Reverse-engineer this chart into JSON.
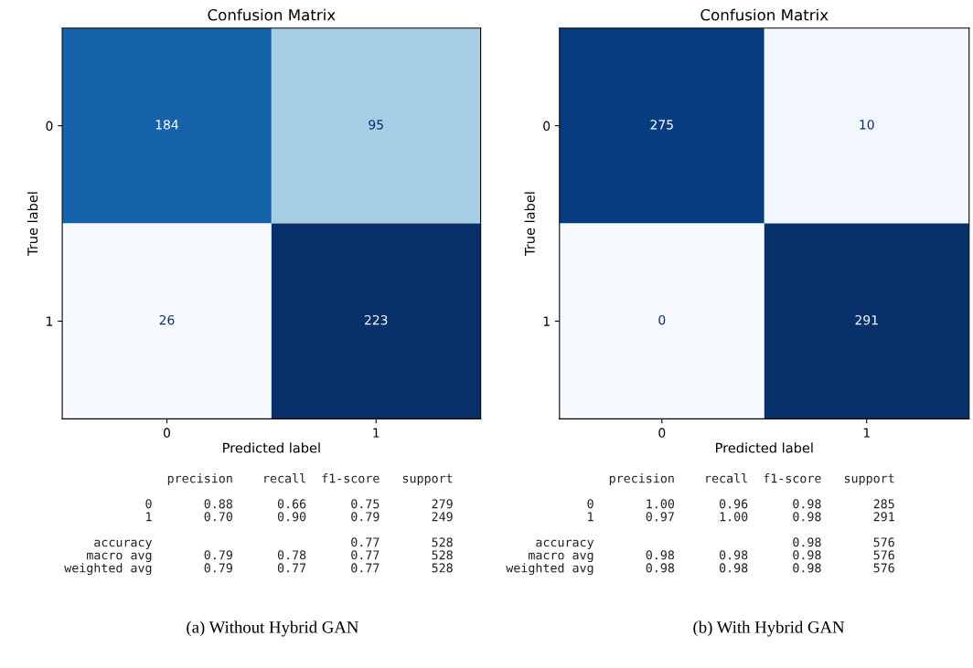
{
  "chart_data": [
    {
      "type": "heatmap",
      "title": "Confusion Matrix",
      "xlabel": "Predicted label",
      "ylabel": "True label",
      "categories": [
        "0",
        "1"
      ],
      "y_categories": [
        "0",
        "1"
      ],
      "cells": [
        [
          184,
          95
        ],
        [
          26,
          223
        ]
      ],
      "data_labels": true,
      "grid": false,
      "annotations": [
        "              precision    recall  f1-score   support\n\n           0       0.88      0.66      0.75       279\n           1       0.70      0.90      0.79       249\n\n    accuracy                           0.77       528\n   macro avg       0.79      0.78      0.77       528\nweighted avg       0.79      0.77      0.77       528",
        "(a) Without Hybrid GAN"
      ]
    },
    {
      "type": "heatmap",
      "title": "Confusion Matrix",
      "xlabel": "Predicted label",
      "ylabel": "True label",
      "categories": [
        "0",
        "1"
      ],
      "y_categories": [
        "0",
        "1"
      ],
      "cells": [
        [
          275,
          10
        ],
        [
          0,
          291
        ]
      ],
      "data_labels": true,
      "grid": false,
      "annotations": [
        "              precision    recall  f1-score   support\n\n           0       1.00      0.96      0.98       285\n           1       0.97      1.00      0.98       291\n\n    accuracy                           0.98       576\n   macro avg       0.98      0.98      0.98       576\nweighted avg       0.98      0.98      0.98       576",
        "(b) With Hybrid GAN"
      ]
    }
  ]
}
